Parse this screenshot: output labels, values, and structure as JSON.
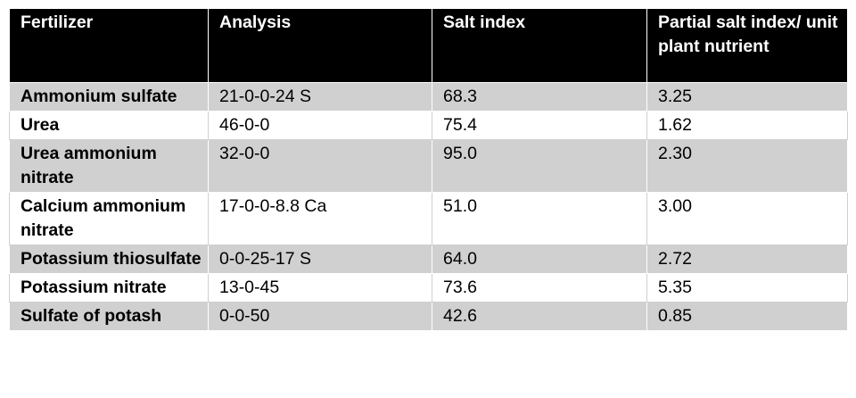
{
  "headers": [
    "Fertilizer",
    "Analysis",
    "Salt index",
    "Partial salt index/ unit plant nutrient"
  ],
  "rows": [
    {
      "fertilizer": "Ammonium sulfate",
      "analysis": "21-0-0-24 S",
      "salt_index": "68.3",
      "partial": "3.25"
    },
    {
      "fertilizer": "Urea",
      "analysis": "46-0-0",
      "salt_index": "75.4",
      "partial": "1.62"
    },
    {
      "fertilizer": "Urea ammonium nitrate",
      "analysis": "32-0-0",
      "salt_index": "95.0",
      "partial": "2.30"
    },
    {
      "fertilizer": "Calcium ammonium nitrate",
      "analysis": "17-0-0-8.8 Ca",
      "salt_index": "51.0",
      "partial": "3.00"
    },
    {
      "fertilizer": "Potassium thiosulfate",
      "analysis": "0-0-25-17 S",
      "salt_index": "64.0",
      "partial": "2.72"
    },
    {
      "fertilizer": "Potassium nitrate",
      "analysis": "13-0-45",
      "salt_index": "73.6",
      "partial": "5.35"
    },
    {
      "fertilizer": "Sulfate of potash",
      "analysis": "0-0-50",
      "salt_index": "42.6",
      "partial": "0.85"
    }
  ],
  "colors": {
    "header_bg": "#000000",
    "header_fg": "#ffffff",
    "shaded_row": "#d0d0d0",
    "plain_row": "#ffffff"
  }
}
